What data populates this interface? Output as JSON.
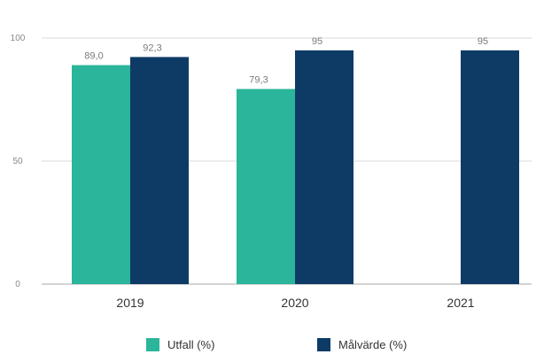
{
  "colors": {
    "utfall": "#2bb59a",
    "malvarde": "#0d3b66",
    "grid": "#d9d9d9",
    "axis": "#aaaaaa"
  },
  "chart_data": {
    "type": "bar",
    "categories": [
      "2019",
      "2020",
      "2021"
    ],
    "ylim": [
      0,
      100
    ],
    "yticks": [
      0,
      50,
      100
    ],
    "ytick_labels": [
      "0",
      "50",
      "100"
    ],
    "grid": true,
    "legend_position": "bottom",
    "series": [
      {
        "name": "Utfall (%)",
        "values": [
          89.0,
          79.3,
          null
        ],
        "labels": [
          "89,0",
          "79,3",
          null
        ]
      },
      {
        "name": "Målvärde (%)",
        "values": [
          92.3,
          95,
          95
        ],
        "labels": [
          "92,3",
          "95",
          "95"
        ]
      }
    ]
  }
}
